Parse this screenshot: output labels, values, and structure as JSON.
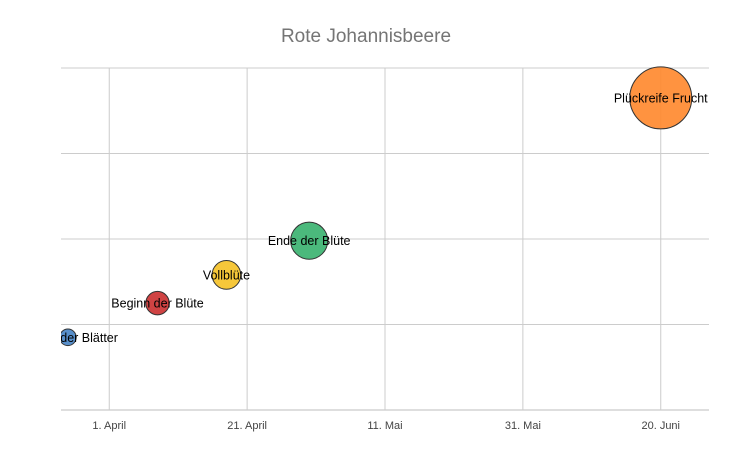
{
  "chart_data": {
    "type": "scatter",
    "title": "Rote Johannisbeere",
    "xlabel": "",
    "ylabel": "",
    "x_axis_type": "date",
    "xlim": [
      "2023-03-25",
      "2023-06-27"
    ],
    "ylim": [
      0,
      4
    ],
    "grid": true,
    "legend": "none",
    "x_ticks": [
      {
        "date": "2023-04-01",
        "label": "1. April"
      },
      {
        "date": "2023-04-21",
        "label": "21. April"
      },
      {
        "date": "2023-05-11",
        "label": "11. Mai"
      },
      {
        "date": "2023-05-31",
        "label": "31. Mai"
      },
      {
        "date": "2023-06-20",
        "label": "20. Juni"
      }
    ],
    "y_ticks": [
      0,
      1,
      2,
      3,
      4
    ],
    "points": [
      {
        "label": "Beginn der Blätter",
        "x": "2023-03-26",
        "y": 0.85,
        "size": 1,
        "color": "#4a86c5"
      },
      {
        "label": "Beginn der Blüte",
        "x": "2023-04-08",
        "y": 1.25,
        "size": 2,
        "color": "#cc3333"
      },
      {
        "label": "Vollblüte",
        "x": "2023-04-18",
        "y": 1.58,
        "size": 3,
        "color": "#f5c229"
      },
      {
        "label": "Ende der Blüte",
        "x": "2023-04-30",
        "y": 1.98,
        "size": 5,
        "color": "#3cb371"
      },
      {
        "label": "Plückreife Frucht",
        "x": "2023-06-20",
        "y": 3.65,
        "size": 14,
        "color": "#ff8a30"
      }
    ]
  }
}
